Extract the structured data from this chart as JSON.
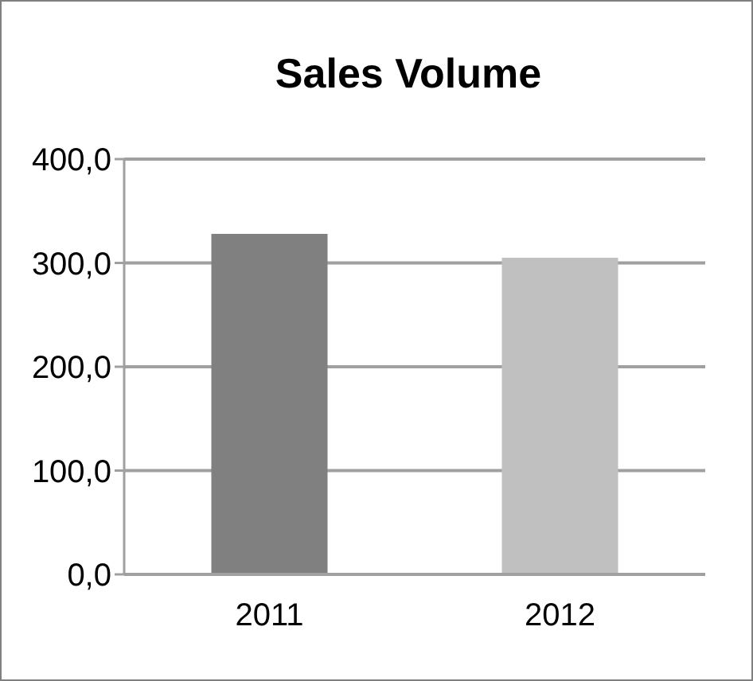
{
  "chart_data": {
    "type": "bar",
    "title": "Sales Volume",
    "categories": [
      "2011",
      "2012"
    ],
    "values": [
      328,
      305
    ],
    "colors": [
      "#808080",
      "#c0c0c0"
    ],
    "ylim": [
      0,
      400
    ],
    "yticks": [
      {
        "value": 0,
        "label": "0,0"
      },
      {
        "value": 100,
        "label": "100,0"
      },
      {
        "value": 200,
        "label": "200,0"
      },
      {
        "value": 300,
        "label": "300,0"
      },
      {
        "value": 400,
        "label": "400,0"
      }
    ],
    "grid": "y"
  }
}
